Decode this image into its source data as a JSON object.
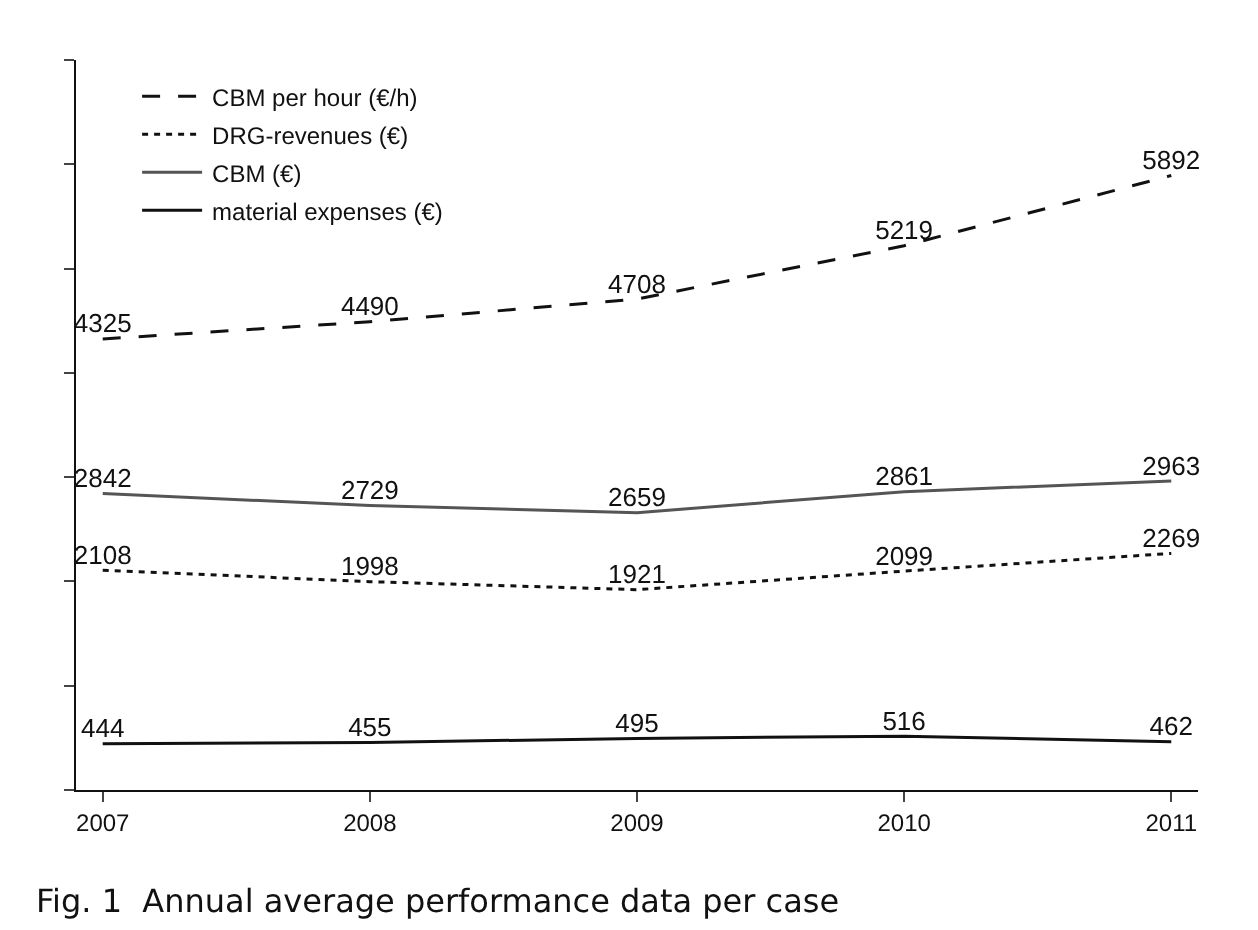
{
  "chart_data": {
    "type": "line",
    "categories": [
      "2007",
      "2008",
      "2009",
      "2010",
      "2011"
    ],
    "series": [
      {
        "name": "CBM per hour (€/h)",
        "color": "#111111",
        "line_style": "dashed",
        "values": [
          4325,
          4490,
          4708,
          5219,
          5892
        ]
      },
      {
        "name": "DRG-revenues (€)",
        "color": "#111111",
        "line_style": "dotted",
        "values": [
          2108,
          1998,
          1921,
          2099,
          2269
        ]
      },
      {
        "name": "CBM (€)",
        "color": "#555555",
        "line_style": "solid",
        "values": [
          2842,
          2729,
          2659,
          2861,
          2963
        ]
      },
      {
        "name": "material expenses (€)",
        "color": "#111111",
        "line_style": "solid",
        "values": [
          444,
          455,
          495,
          516,
          462
        ]
      }
    ],
    "ylim": [
      0,
      7000
    ],
    "yticks": [
      {
        "value": 0,
        "label": null
      },
      {
        "value": 1000,
        "label": null
      },
      {
        "value": 2000,
        "label": null
      },
      {
        "value": 3000,
        "label": null
      },
      {
        "value": 4000,
        "label": null
      },
      {
        "value": 5000,
        "label": null
      },
      {
        "value": 6000,
        "label": null
      },
      {
        "value": 7000,
        "label": null
      }
    ],
    "data_labels": true,
    "grid": false,
    "legend": "top left",
    "marker": "none",
    "annotations": [
      "Fig. 1  Annual average performance data per case"
    ]
  }
}
